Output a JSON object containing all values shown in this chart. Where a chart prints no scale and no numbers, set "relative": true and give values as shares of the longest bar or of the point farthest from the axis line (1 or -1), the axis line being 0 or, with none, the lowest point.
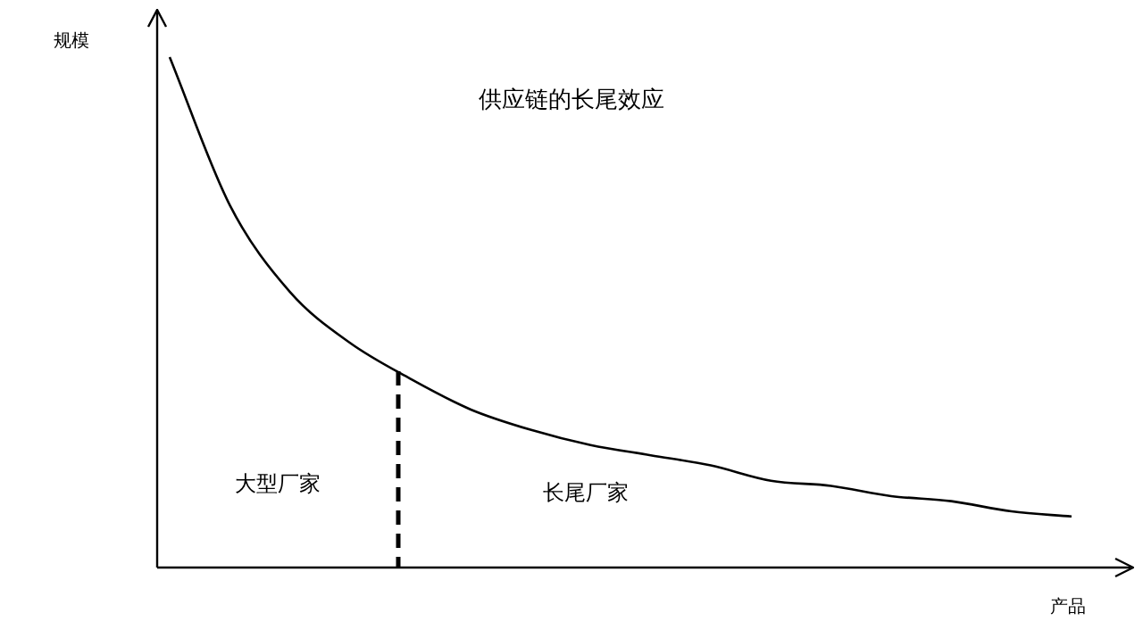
{
  "chart_data": {
    "type": "line",
    "title": "供应链的长尾效应",
    "xlabel": "产品",
    "ylabel": "规模",
    "relative": true,
    "categories": [
      null,
      null,
      null,
      null,
      null,
      null,
      null,
      null,
      null,
      null,
      null,
      null,
      null,
      null,
      null,
      null
    ],
    "series": [
      {
        "color": "#000000",
        "values": [
          1,
          0.71,
          0.54,
          0.44,
          0.37,
          0.31,
          0.27,
          0.24,
          0.22,
          0.2,
          0.17,
          0.16,
          0.14,
          0.13,
          0.11,
          0.1
        ]
      }
    ],
    "annotations": [
      "大型厂家",
      "长尾厂家"
    ],
    "marker": "none",
    "line_style": "solid",
    "legend": false
  }
}
